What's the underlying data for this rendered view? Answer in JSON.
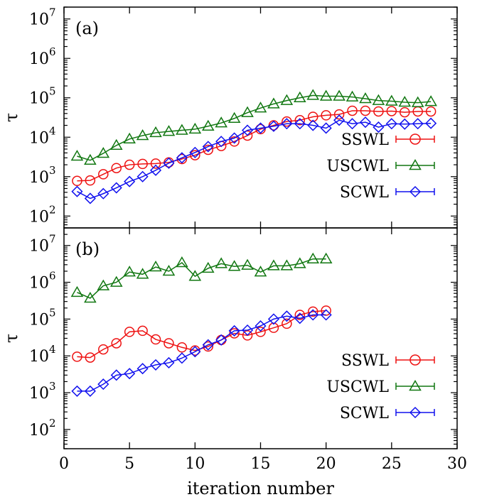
{
  "chart_data": [
    {
      "type": "line",
      "panel_label": "(a)",
      "ylabel": "τ",
      "xlabel": "",
      "xlim": [
        0,
        30
      ],
      "ylim": [
        50,
        20000000
      ],
      "yscale": "log",
      "xticks": [
        0,
        5,
        10,
        15,
        20,
        25,
        30
      ],
      "yticks": [
        {
          "base": "10",
          "exp": "2",
          "value": 100
        },
        {
          "base": "10",
          "exp": "3",
          "value": 1000
        },
        {
          "base": "10",
          "exp": "4",
          "value": 10000
        },
        {
          "base": "10",
          "exp": "5",
          "value": 100000
        },
        {
          "base": "10",
          "exp": "6",
          "value": 1000000
        },
        {
          "base": "10",
          "exp": "7",
          "value": 10000000
        }
      ],
      "legend_position": "bottom-right",
      "series": [
        {
          "name": "SSWL",
          "color": "#ee1111",
          "marker": "circle",
          "x": [
            1,
            2,
            3,
            4,
            5,
            6,
            7,
            8,
            9,
            10,
            11,
            12,
            13,
            14,
            15,
            16,
            17,
            18,
            19,
            20,
            21,
            22,
            23,
            24,
            25,
            26,
            27,
            28
          ],
          "y": [
            780,
            800,
            1150,
            1650,
            2000,
            2100,
            2150,
            2300,
            2800,
            3500,
            4800,
            6000,
            7800,
            11000,
            16000,
            20000,
            25000,
            27000,
            33000,
            36000,
            38000,
            47000,
            47000,
            45000,
            46000,
            43000,
            45000,
            45000
          ]
        },
        {
          "name": "USCWL",
          "color": "#117711",
          "marker": "triangle",
          "x": [
            1,
            2,
            3,
            4,
            5,
            6,
            7,
            8,
            9,
            10,
            11,
            12,
            13,
            14,
            15,
            16,
            17,
            18,
            19,
            20,
            21,
            22,
            23,
            24,
            25,
            26,
            27,
            28
          ],
          "y": [
            3300,
            2600,
            3900,
            6200,
            9000,
            11000,
            13000,
            14000,
            15000,
            16000,
            19000,
            23000,
            30000,
            42000,
            55000,
            70000,
            85000,
            100000,
            115000,
            110000,
            110000,
            105000,
            95000,
            85000,
            82000,
            77000,
            75000,
            80000
          ]
        },
        {
          "name": "SCWL",
          "color": "#1111ee",
          "marker": "diamond",
          "x": [
            1,
            2,
            3,
            4,
            5,
            6,
            7,
            8,
            9,
            10,
            11,
            12,
            13,
            14,
            15,
            16,
            17,
            18,
            19,
            20,
            21,
            22,
            23,
            24,
            25,
            26,
            27,
            28
          ],
          "y": [
            420,
            280,
            370,
            520,
            750,
            1000,
            1450,
            2200,
            3000,
            4100,
            5800,
            7800,
            9500,
            15000,
            17000,
            19000,
            22000,
            22000,
            20000,
            17000,
            27000,
            22000,
            24000,
            18000,
            22000,
            21500,
            22000,
            22500
          ]
        }
      ]
    },
    {
      "type": "line",
      "panel_label": "(b)",
      "ylabel": "τ",
      "xlabel": "iteration number",
      "xlim": [
        0,
        30
      ],
      "ylim": [
        30,
        30000000
      ],
      "yscale": "log",
      "xticks": [
        0,
        5,
        10,
        15,
        20,
        25,
        30
      ],
      "yticks": [
        {
          "base": "10",
          "exp": "2",
          "value": 100
        },
        {
          "base": "10",
          "exp": "3",
          "value": 1000
        },
        {
          "base": "10",
          "exp": "4",
          "value": 10000
        },
        {
          "base": "10",
          "exp": "5",
          "value": 100000
        },
        {
          "base": "10",
          "exp": "6",
          "value": 1000000
        },
        {
          "base": "10",
          "exp": "7",
          "value": 10000000
        }
      ],
      "legend_position": "bottom-right",
      "series": [
        {
          "name": "SSWL",
          "color": "#ee1111",
          "marker": "circle",
          "x": [
            1,
            2,
            3,
            4,
            5,
            6,
            7,
            8,
            9,
            10,
            11,
            12,
            13,
            14,
            15,
            16,
            17,
            18,
            19,
            20
          ],
          "y": [
            9500,
            9000,
            15000,
            22000,
            45000,
            48000,
            28000,
            22000,
            17000,
            14000,
            18000,
            27000,
            41000,
            36000,
            45000,
            58000,
            75000,
            130000,
            160000,
            170000
          ]
        },
        {
          "name": "USCWL",
          "color": "#117711",
          "marker": "triangle",
          "x": [
            1,
            2,
            3,
            4,
            5,
            6,
            7,
            8,
            9,
            10,
            11,
            12,
            13,
            14,
            15,
            16,
            17,
            18,
            19,
            20
          ],
          "y": [
            530000,
            370000,
            800000,
            1000000,
            1900000,
            1650000,
            2600000,
            2000000,
            3400000,
            1450000,
            2400000,
            3200000,
            2700000,
            2900000,
            1900000,
            2800000,
            2800000,
            3200000,
            4300000,
            4300000
          ]
        },
        {
          "name": "SCWL",
          "color": "#1111ee",
          "marker": "diamond",
          "x": [
            1,
            2,
            3,
            4,
            5,
            6,
            7,
            8,
            9,
            10,
            11,
            12,
            13,
            14,
            15,
            16,
            17,
            18,
            19,
            20
          ],
          "y": [
            1100,
            1100,
            1700,
            3000,
            3300,
            4500,
            5700,
            6500,
            8700,
            13000,
            20000,
            27000,
            48000,
            50000,
            65000,
            100000,
            120000,
            105000,
            130000,
            130000
          ]
        }
      ]
    }
  ]
}
